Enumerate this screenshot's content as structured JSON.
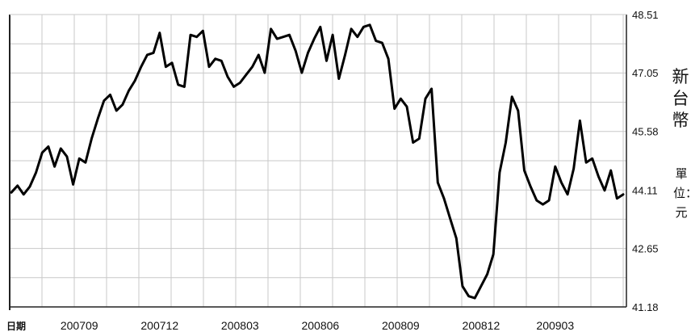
{
  "chart_data": {
    "type": "line",
    "date_label": "日期",
    "ylabel": "新台幣",
    "unit_label": "單位：元",
    "y_ticks": [
      "48.51",
      "47.05",
      "45.58",
      "44.11",
      "42.65",
      "41.18"
    ],
    "ylim": [
      41.18,
      48.51
    ],
    "x_ticks": [
      "200709",
      "200712",
      "200803",
      "200806",
      "200809",
      "200812",
      "200903"
    ],
    "grid": true,
    "series": [
      {
        "values": [
          44.05,
          44.22,
          44.0,
          44.2,
          44.55,
          45.05,
          45.2,
          44.7,
          45.15,
          44.95,
          44.25,
          44.9,
          44.8,
          45.4,
          45.9,
          46.35,
          46.5,
          46.1,
          46.25,
          46.6,
          46.85,
          47.2,
          47.5,
          47.55,
          48.05,
          47.2,
          47.3,
          46.75,
          46.7,
          48.0,
          47.95,
          48.1,
          47.2,
          47.4,
          47.35,
          46.95,
          46.7,
          46.8,
          47.0,
          47.2,
          47.5,
          47.05,
          48.15,
          47.9,
          47.95,
          48.0,
          47.6,
          47.05,
          47.55,
          47.9,
          48.2,
          47.35,
          48.0,
          46.9,
          47.5,
          48.15,
          47.95,
          48.2,
          48.25,
          47.85,
          47.8,
          47.4,
          46.15,
          46.4,
          46.2,
          45.3,
          45.4,
          46.4,
          46.65,
          44.3,
          43.9,
          43.4,
          42.9,
          41.7,
          41.45,
          41.4,
          41.7,
          42.0,
          42.5,
          44.55,
          45.3,
          46.45,
          46.1,
          44.6,
          44.2,
          43.85,
          43.75,
          43.85,
          44.7,
          44.3,
          44.0,
          44.65,
          45.85,
          44.8,
          44.9,
          44.45,
          44.1,
          44.6,
          43.9,
          44.0
        ]
      }
    ]
  }
}
